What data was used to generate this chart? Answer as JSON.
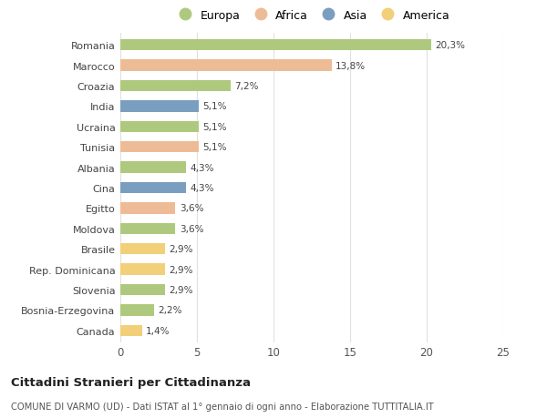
{
  "countries": [
    "Romania",
    "Marocco",
    "Croazia",
    "India",
    "Ucraina",
    "Tunisia",
    "Albania",
    "Cina",
    "Egitto",
    "Moldova",
    "Brasile",
    "Rep. Dominicana",
    "Slovenia",
    "Bosnia-Erzegovina",
    "Canada"
  ],
  "values": [
    20.3,
    13.8,
    7.2,
    5.1,
    5.1,
    5.1,
    4.3,
    4.3,
    3.6,
    3.6,
    2.9,
    2.9,
    2.9,
    2.2,
    1.4
  ],
  "labels": [
    "20,3%",
    "13,8%",
    "7,2%",
    "5,1%",
    "5,1%",
    "5,1%",
    "4,3%",
    "4,3%",
    "3,6%",
    "3,6%",
    "2,9%",
    "2,9%",
    "2,9%",
    "2,2%",
    "1,4%"
  ],
  "continents": [
    "Europa",
    "Africa",
    "Europa",
    "Asia",
    "Europa",
    "Africa",
    "Europa",
    "Asia",
    "Africa",
    "Europa",
    "America",
    "America",
    "Europa",
    "Europa",
    "America"
  ],
  "colors": {
    "Europa": "#aec97e",
    "Africa": "#edbc96",
    "Asia": "#7a9ec0",
    "America": "#f2cf79"
  },
  "legend_order": [
    "Europa",
    "Africa",
    "Asia",
    "America"
  ],
  "title": "Cittadini Stranieri per Cittadinanza",
  "subtitle": "COMUNE DI VARMO (UD) - Dati ISTAT al 1° gennaio di ogni anno - Elaborazione TUTTITALIA.IT",
  "xlim": [
    0,
    25
  ],
  "xticks": [
    0,
    5,
    10,
    15,
    20,
    25
  ],
  "background_color": "#ffffff",
  "grid_color": "#e0e0e0"
}
